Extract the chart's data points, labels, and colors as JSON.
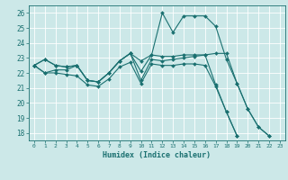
{
  "xlabel": "Humidex (Indice chaleur)",
  "bg_color": "#cce8e8",
  "grid_color": "#ffffff",
  "line_color": "#1a7070",
  "xlim": [
    -0.5,
    23.5
  ],
  "ylim": [
    17.5,
    26.5
  ],
  "xticks": [
    0,
    1,
    2,
    3,
    4,
    5,
    6,
    7,
    8,
    9,
    10,
    11,
    12,
    13,
    14,
    15,
    16,
    17,
    18,
    19,
    20,
    21,
    22,
    23
  ],
  "yticks": [
    18,
    19,
    20,
    21,
    22,
    23,
    24,
    25,
    26
  ],
  "lines": [
    {
      "start": 0,
      "y": [
        22.5,
        22.9,
        22.5,
        22.4,
        22.5,
        21.5,
        21.4,
        22.0,
        22.8,
        23.3,
        22.8,
        23.2,
        23.1,
        23.1,
        23.2,
        23.2,
        23.2,
        23.3,
        23.3,
        21.3,
        19.6,
        18.4,
        17.8
      ]
    },
    {
      "start": 0,
      "y": [
        22.5,
        22.9,
        22.5,
        22.4,
        22.5,
        21.5,
        21.4,
        22.0,
        22.8,
        23.3,
        22.1,
        23.2,
        26.0,
        24.7,
        25.8,
        25.8,
        25.8,
        25.1,
        22.9,
        21.3,
        19.6,
        18.4,
        17.8
      ]
    },
    {
      "start": 0,
      "y": [
        22.5,
        22.0,
        22.2,
        22.2,
        22.5,
        21.5,
        21.4,
        22.0,
        22.8,
        23.3,
        21.5,
        22.9,
        22.8,
        22.9,
        23.0,
        23.1,
        23.2,
        21.2,
        19.4,
        17.8
      ]
    },
    {
      "start": 0,
      "y": [
        22.5,
        22.0,
        22.0,
        21.9,
        21.8,
        21.2,
        21.1,
        21.6,
        22.4,
        22.7,
        21.3,
        22.6,
        22.5,
        22.5,
        22.6,
        22.6,
        22.5,
        21.1,
        19.4,
        17.8
      ]
    }
  ],
  "markersize": 2.0,
  "linewidth": 0.8
}
